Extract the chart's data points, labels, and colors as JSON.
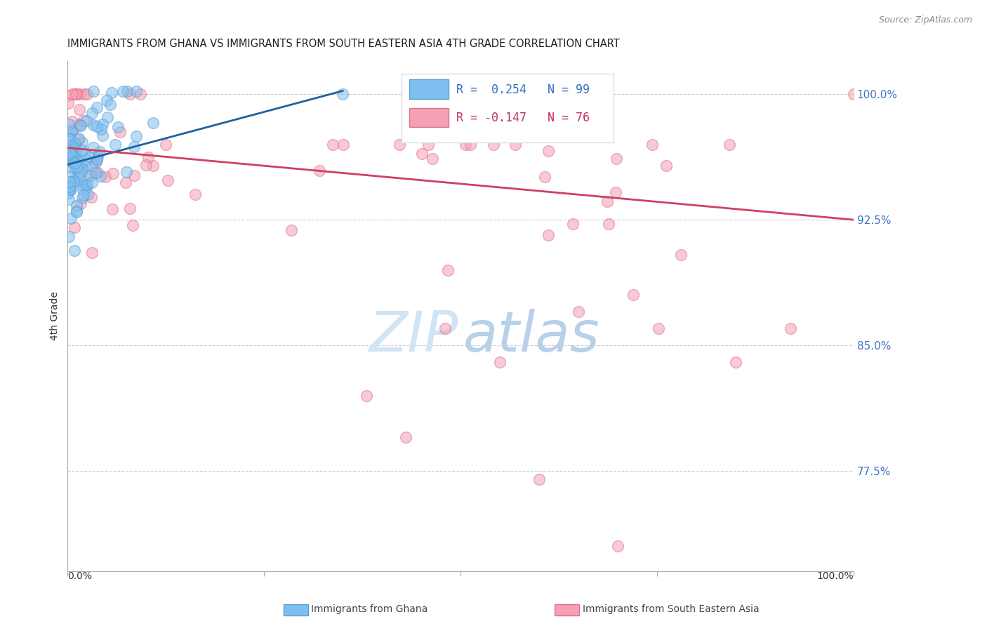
{
  "title": "IMMIGRANTS FROM GHANA VS IMMIGRANTS FROM SOUTH EASTERN ASIA 4TH GRADE CORRELATION CHART",
  "source": "Source: ZipAtlas.com",
  "ylabel_label": "4th Grade",
  "yticks": [
    0.775,
    0.85,
    0.925,
    1.0
  ],
  "ytick_labels": [
    "77.5%",
    "85.0%",
    "92.5%",
    "100.0%"
  ],
  "ylim": [
    0.715,
    1.02
  ],
  "xlim": [
    0.0,
    1.0
  ],
  "blue_color": "#7fbfef",
  "pink_color": "#f4a0b5",
  "blue_edge_color": "#5a9fd4",
  "pink_edge_color": "#e0708a",
  "blue_line_color": "#2060a0",
  "pink_line_color": "#d04060",
  "watermark_zip_color": "#d0e4f4",
  "watermark_atlas_color": "#b8d0e8",
  "grid_color": "#cccccc",
  "legend_box_color": "#dddddd",
  "blue_legend_text_color": "#3070c0",
  "pink_legend_text_color": "#c03060",
  "title_color": "#222222",
  "source_color": "#888888",
  "ytick_color": "#4472c4",
  "axis_color": "#aaaaaa",
  "bottom_label_color": "#444444",
  "blue_r": "R =  0.254",
  "blue_n": "N = 99",
  "pink_r": "R = -0.147",
  "pink_n": "N = 76",
  "blue_legend_label": "Immigrants from Ghana",
  "pink_legend_label": "Immigrants from South Eastern Asia",
  "seed": 42,
  "n_ghana": 99,
  "n_sea": 76,
  "ghana_intercept": 0.961,
  "ghana_slope": 0.1,
  "sea_intercept": 0.968,
  "sea_slope": -0.052,
  "blue_line_x0": 0.0,
  "blue_line_x1": 0.35,
  "blue_line_y0": 0.958,
  "blue_line_y1": 1.002,
  "pink_line_x0": 0.0,
  "pink_line_x1": 1.0,
  "pink_line_y0": 0.968,
  "pink_line_y1": 0.925
}
